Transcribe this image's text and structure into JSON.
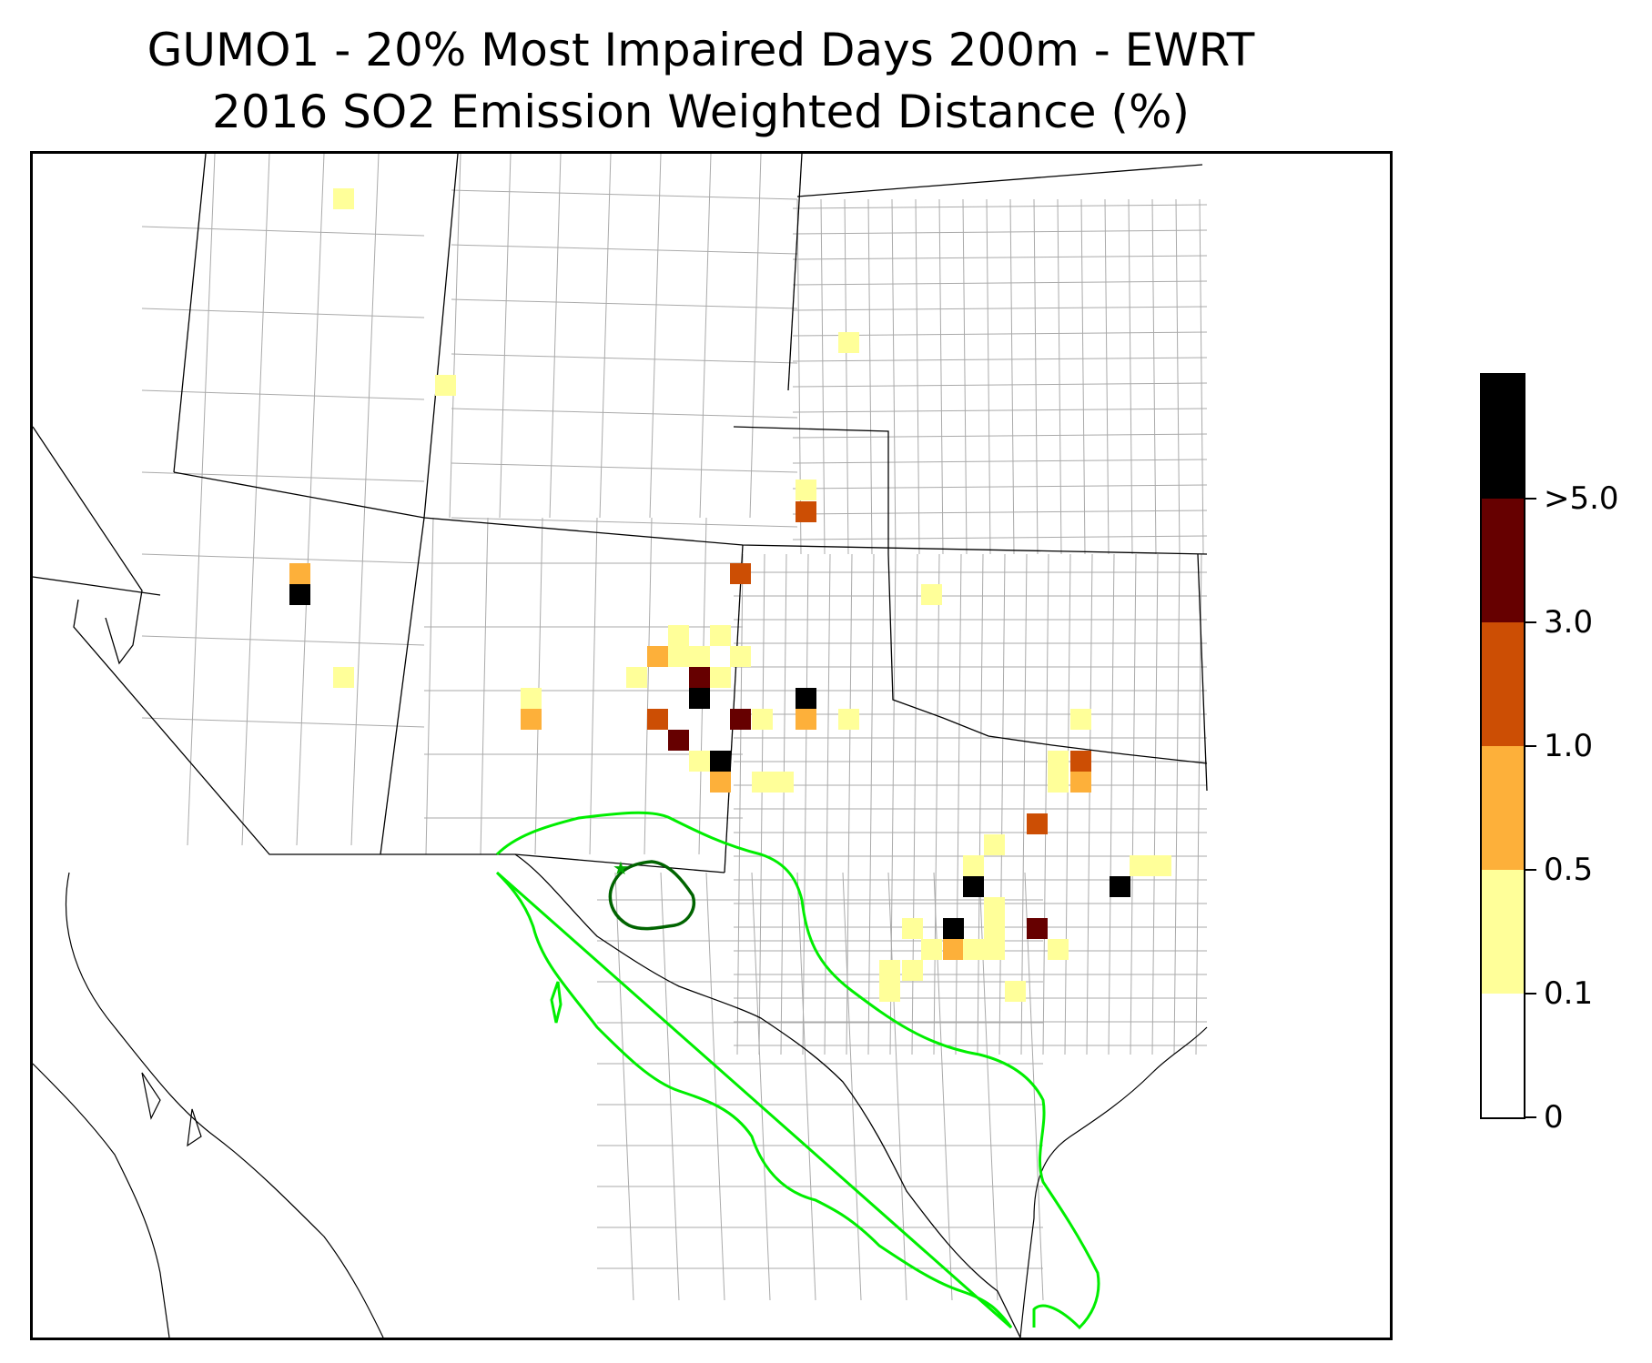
{
  "title": {
    "line1": "GUMO1 - 20% Most Impaired Days 200m - EWRT",
    "line2": "2016 SO2 Emission Weighted Distance (%)"
  },
  "colors": {
    "white": "#ffffff",
    "light_yellow": "#ffff99",
    "orange": "#fdb03a",
    "dark_orange": "#cc4e04",
    "dark_red": "#660000",
    "black": "#000000",
    "contour_bright_green": "#00ee00",
    "contour_dark_green": "#006400",
    "county_lines": "#aaaaaa",
    "state_lines": "#000000"
  },
  "colorbar": {
    "tick_labels": [
      "0",
      "0.1",
      "0.5",
      "1.0",
      "3.0",
      ">5.0"
    ],
    "bins": [
      {
        "from": "0",
        "to": "0.1",
        "color": "#ffffff"
      },
      {
        "from": "0.1",
        "to": "0.5",
        "color": "#ffff99"
      },
      {
        "from": "0.5",
        "to": "1.0",
        "color": "#fdb03a"
      },
      {
        "from": "1.0",
        "to": "3.0",
        "color": "#cc4e04"
      },
      {
        "from": "3.0",
        "to": ">5.0",
        "color": "#660000"
      },
      {
        "from": ">5.0",
        "to": "",
        "color": "#000000"
      }
    ]
  },
  "site_marker": "star-icon",
  "contours": [
    "bright-green-outer",
    "dark-green-inner"
  ]
}
